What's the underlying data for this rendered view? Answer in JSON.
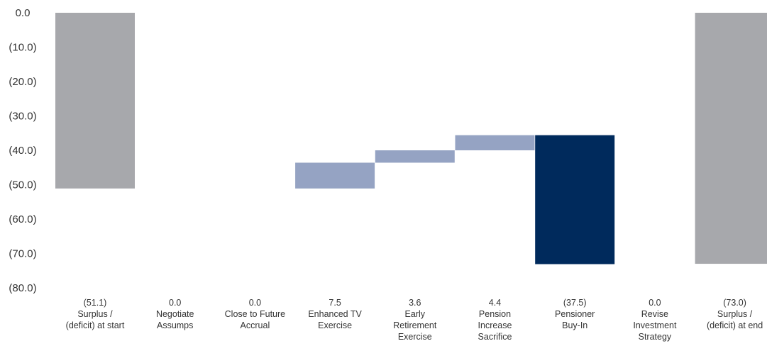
{
  "chart_data": {
    "type": "bar",
    "subtype": "waterfall",
    "categories": [
      "Surplus / (deficit) at start",
      "Negotiate Assumps",
      "Close to Future Accrual",
      "Enhanced TV Exercise",
      "Early Retirement Exercise",
      "Pension Increase Sacrifice",
      "Pensioner Buy-In",
      "Revise Investment Strategy",
      "Surplus / (deficit) at end"
    ],
    "category_label_lines": [
      [
        "Surplus /",
        "(deficit) at start"
      ],
      [
        "Negotiate",
        "Assumps"
      ],
      [
        "Close to Future",
        "Accrual"
      ],
      [
        "Enhanced TV",
        "Exercise"
      ],
      [
        "Early",
        "Retirement",
        "Exercise"
      ],
      [
        "Pension",
        "Increase",
        "Sacrifice"
      ],
      [
        "Pensioner",
        "Buy-In"
      ],
      [
        "Revise",
        "Investment",
        "Strategy"
      ],
      [
        "Surplus /",
        "(deficit) at end"
      ]
    ],
    "values": [
      -51.1,
      0.0,
      0.0,
      7.5,
      3.6,
      4.4,
      -37.5,
      0.0,
      -73.0
    ],
    "value_labels": [
      "(51.1)",
      "0.0",
      "0.0",
      "7.5",
      "3.6",
      "4.4",
      "(37.5)",
      "0.0",
      "(73.0)"
    ],
    "bar_kinds": [
      "total",
      "step",
      "step",
      "step",
      "step",
      "step",
      "step",
      "step",
      "total"
    ],
    "ylim": [
      -80,
      0
    ],
    "yticks": [
      0,
      -10,
      -20,
      -30,
      -40,
      -50,
      -60,
      -70,
      -80
    ],
    "ytick_labels": [
      "0.0",
      "(10.0)",
      "(20.0)",
      "(30.0)",
      "(40.0)",
      "(50.0)",
      "(60.0)",
      "(70.0)",
      "(80.0)"
    ],
    "title": "",
    "xlabel": "",
    "ylabel": "",
    "grid": false,
    "legend": "none",
    "colors": {
      "total": "#a7a8ac",
      "increase": "#95a3c3",
      "decrease": "#002a5c",
      "text": "#333333"
    }
  }
}
